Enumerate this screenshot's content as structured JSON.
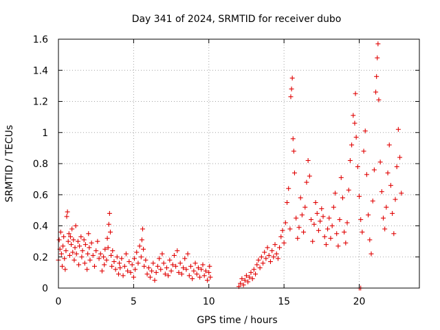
{
  "chart_data": {
    "type": "scatter",
    "title": "Day 341 of 2024, SRMTID for receiver dubo",
    "xlabel": "GPS time / hours",
    "ylabel": "SRMTID / TECUs",
    "xlim": [
      0,
      24
    ],
    "ylim": [
      0,
      1.6
    ],
    "xticks": [
      0,
      5,
      10,
      15,
      20
    ],
    "xtick_labels": [
      "0",
      "5",
      "10",
      "15",
      "20"
    ],
    "yticks": [
      0,
      0.2,
      0.4,
      0.6,
      0.8,
      1,
      1.2,
      1.4,
      1.6
    ],
    "ytick_labels": [
      "0",
      "0.2",
      "0.4",
      "0.6",
      "0.8",
      "1",
      "1.2",
      "1.4",
      "1.6"
    ],
    "grid": true,
    "marker": "+",
    "marker_color": "#e00000",
    "series": [
      {
        "name": "SRMTID",
        "points": [
          [
            0.0,
            0.18
          ],
          [
            0.05,
            0.31
          ],
          [
            0.1,
            0.25
          ],
          [
            0.15,
            0.36
          ],
          [
            0.2,
            0.22
          ],
          [
            0.25,
            0.14
          ],
          [
            0.3,
            0.27
          ],
          [
            0.35,
            0.33
          ],
          [
            0.4,
            0.19
          ],
          [
            0.45,
            0.12
          ],
          [
            0.5,
            0.24
          ],
          [
            0.55,
            0.46
          ],
          [
            0.6,
            0.49
          ],
          [
            0.65,
            0.3
          ],
          [
            0.7,
            0.35
          ],
          [
            0.75,
            0.21
          ],
          [
            0.8,
            0.33
          ],
          [
            0.85,
            0.28
          ],
          [
            0.9,
            0.38
          ],
          [
            0.95,
            0.23
          ],
          [
            1.0,
            0.31
          ],
          [
            1.05,
            0.18
          ],
          [
            1.1,
            0.26
          ],
          [
            1.15,
            0.4
          ],
          [
            1.2,
            0.22
          ],
          [
            1.3,
            0.3
          ],
          [
            1.35,
            0.15
          ],
          [
            1.4,
            0.27
          ],
          [
            1.5,
            0.33
          ],
          [
            1.55,
            0.2
          ],
          [
            1.6,
            0.24
          ],
          [
            1.7,
            0.31
          ],
          [
            1.75,
            0.16
          ],
          [
            1.8,
            0.28
          ],
          [
            1.9,
            0.12
          ],
          [
            1.95,
            0.22
          ],
          [
            2.0,
            0.35
          ],
          [
            2.05,
            0.26
          ],
          [
            2.1,
            0.18
          ],
          [
            2.2,
            0.29
          ],
          [
            2.3,
            0.21
          ],
          [
            2.4,
            0.14
          ],
          [
            2.5,
            0.24
          ],
          [
            2.6,
            0.3
          ],
          [
            2.7,
            0.19
          ],
          [
            2.8,
            0.22
          ],
          [
            2.9,
            0.11
          ],
          [
            3.0,
            0.2
          ],
          [
            3.05,
            0.15
          ],
          [
            3.1,
            0.25
          ],
          [
            3.2,
            0.18
          ],
          [
            3.25,
            0.32
          ],
          [
            3.3,
            0.26
          ],
          [
            3.35,
            0.41
          ],
          [
            3.4,
            0.48
          ],
          [
            3.45,
            0.36
          ],
          [
            3.5,
            0.21
          ],
          [
            3.55,
            0.14
          ],
          [
            3.6,
            0.24
          ],
          [
            3.7,
            0.17
          ],
          [
            3.8,
            0.12
          ],
          [
            3.9,
            0.2
          ],
          [
            4.0,
            0.09
          ],
          [
            4.05,
            0.16
          ],
          [
            4.1,
            0.13
          ],
          [
            4.2,
            0.19
          ],
          [
            4.3,
            0.08
          ],
          [
            4.4,
            0.14
          ],
          [
            4.5,
            0.22
          ],
          [
            4.6,
            0.11
          ],
          [
            4.7,
            0.17
          ],
          [
            4.8,
            0.1
          ],
          [
            4.9,
            0.15
          ],
          [
            5.0,
            0.07
          ],
          [
            5.05,
            0.19
          ],
          [
            5.1,
            0.12
          ],
          [
            5.2,
            0.23
          ],
          [
            5.3,
            0.16
          ],
          [
            5.4,
            0.27
          ],
          [
            5.5,
            0.2
          ],
          [
            5.55,
            0.31
          ],
          [
            5.6,
            0.38
          ],
          [
            5.65,
            0.25
          ],
          [
            5.7,
            0.14
          ],
          [
            5.8,
            0.18
          ],
          [
            5.9,
            0.09
          ],
          [
            6.0,
            0.13
          ],
          [
            6.1,
            0.07
          ],
          [
            6.2,
            0.11
          ],
          [
            6.3,
            0.16
          ],
          [
            6.4,
            0.05
          ],
          [
            6.5,
            0.1
          ],
          [
            6.6,
            0.14
          ],
          [
            6.7,
            0.19
          ],
          [
            6.8,
            0.12
          ],
          [
            6.9,
            0.22
          ],
          [
            7.0,
            0.16
          ],
          [
            7.1,
            0.09
          ],
          [
            7.2,
            0.13
          ],
          [
            7.3,
            0.08
          ],
          [
            7.4,
            0.18
          ],
          [
            7.5,
            0.11
          ],
          [
            7.6,
            0.15
          ],
          [
            7.7,
            0.21
          ],
          [
            7.8,
            0.14
          ],
          [
            7.9,
            0.24
          ],
          [
            8.0,
            0.1
          ],
          [
            8.1,
            0.16
          ],
          [
            8.2,
            0.09
          ],
          [
            8.3,
            0.13
          ],
          [
            8.4,
            0.19
          ],
          [
            8.5,
            0.12
          ],
          [
            8.6,
            0.22
          ],
          [
            8.7,
            0.08
          ],
          [
            8.8,
            0.14
          ],
          [
            8.9,
            0.06
          ],
          [
            9.0,
            0.11
          ],
          [
            9.1,
            0.16
          ],
          [
            9.2,
            0.09
          ],
          [
            9.3,
            0.13
          ],
          [
            9.4,
            0.07
          ],
          [
            9.5,
            0.12
          ],
          [
            9.6,
            0.15
          ],
          [
            9.7,
            0.08
          ],
          [
            9.8,
            0.11
          ],
          [
            9.9,
            0.05
          ],
          [
            10.0,
            0.1
          ],
          [
            10.05,
            0.14
          ],
          [
            10.1,
            0.07
          ],
          [
            12.0,
            0.01
          ],
          [
            12.1,
            0.03
          ],
          [
            12.2,
            0.06
          ],
          [
            12.3,
            0.02
          ],
          [
            12.4,
            0.05
          ],
          [
            12.5,
            0.08
          ],
          [
            12.6,
            0.04
          ],
          [
            12.7,
            0.07
          ],
          [
            12.8,
            0.1
          ],
          [
            12.9,
            0.06
          ],
          [
            13.0,
            0.12
          ],
          [
            13.1,
            0.09
          ],
          [
            13.2,
            0.15
          ],
          [
            13.3,
            0.18
          ],
          [
            13.4,
            0.13
          ],
          [
            13.5,
            0.2
          ],
          [
            13.6,
            0.16
          ],
          [
            13.7,
            0.23
          ],
          [
            13.8,
            0.19
          ],
          [
            13.9,
            0.26
          ],
          [
            14.0,
            0.21
          ],
          [
            14.1,
            0.17
          ],
          [
            14.2,
            0.24
          ],
          [
            14.3,
            0.2
          ],
          [
            14.4,
            0.28
          ],
          [
            14.5,
            0.22
          ],
          [
            14.6,
            0.19
          ],
          [
            14.7,
            0.26
          ],
          [
            14.8,
            0.33
          ],
          [
            14.9,
            0.37
          ],
          [
            15.0,
            0.29
          ],
          [
            15.1,
            0.42
          ],
          [
            15.2,
            0.55
          ],
          [
            15.3,
            0.64
          ],
          [
            15.4,
            0.38
          ],
          [
            15.45,
            1.23
          ],
          [
            15.5,
            1.28
          ],
          [
            15.55,
            1.35
          ],
          [
            15.6,
            0.96
          ],
          [
            15.65,
            0.88
          ],
          [
            15.7,
            0.74
          ],
          [
            15.8,
            0.45
          ],
          [
            15.9,
            0.32
          ],
          [
            16.0,
            0.39
          ],
          [
            16.1,
            0.58
          ],
          [
            16.2,
            0.47
          ],
          [
            16.3,
            0.36
          ],
          [
            16.4,
            0.52
          ],
          [
            16.5,
            0.68
          ],
          [
            16.6,
            0.82
          ],
          [
            16.7,
            0.72
          ],
          [
            16.8,
            0.44
          ],
          [
            16.9,
            0.3
          ],
          [
            17.0,
            0.41
          ],
          [
            17.1,
            0.55
          ],
          [
            17.2,
            0.48
          ],
          [
            17.3,
            0.37
          ],
          [
            17.4,
            0.43
          ],
          [
            17.5,
            0.51
          ],
          [
            17.6,
            0.46
          ],
          [
            17.7,
            0.33
          ],
          [
            17.8,
            0.28
          ],
          [
            17.9,
            0.38
          ],
          [
            18.0,
            0.45
          ],
          [
            18.1,
            0.32
          ],
          [
            18.2,
            0.4
          ],
          [
            18.3,
            0.52
          ],
          [
            18.4,
            0.61
          ],
          [
            18.5,
            0.35
          ],
          [
            18.6,
            0.27
          ],
          [
            18.7,
            0.44
          ],
          [
            18.8,
            0.71
          ],
          [
            18.9,
            0.58
          ],
          [
            19.0,
            0.36
          ],
          [
            19.1,
            0.29
          ],
          [
            19.2,
            0.42
          ],
          [
            19.3,
            0.63
          ],
          [
            19.4,
            0.82
          ],
          [
            19.5,
            0.92
          ],
          [
            19.6,
            1.11
          ],
          [
            19.7,
            1.06
          ],
          [
            19.75,
            1.25
          ],
          [
            19.8,
            0.97
          ],
          [
            19.9,
            0.78
          ],
          [
            20.0,
            0.59
          ],
          [
            20.1,
            0.44
          ],
          [
            20.2,
            0.36
          ],
          [
            20.3,
            0.88
          ],
          [
            20.4,
            1.01
          ],
          [
            20.5,
            0.73
          ],
          [
            20.6,
            0.47
          ],
          [
            20.7,
            0.31
          ],
          [
            20.8,
            0.22
          ],
          [
            20.9,
            0.56
          ],
          [
            21.0,
            0.76
          ],
          [
            21.1,
            1.26
          ],
          [
            21.15,
            1.36
          ],
          [
            21.2,
            1.48
          ],
          [
            21.25,
            1.57
          ],
          [
            21.3,
            1.21
          ],
          [
            21.4,
            0.81
          ],
          [
            21.5,
            0.62
          ],
          [
            21.6,
            0.45
          ],
          [
            21.7,
            0.38
          ],
          [
            21.8,
            0.52
          ],
          [
            21.9,
            0.74
          ],
          [
            22.0,
            0.92
          ],
          [
            22.1,
            0.66
          ],
          [
            22.2,
            0.48
          ],
          [
            22.3,
            0.35
          ],
          [
            22.4,
            0.57
          ],
          [
            22.5,
            0.78
          ],
          [
            22.6,
            1.02
          ],
          [
            22.7,
            0.84
          ],
          [
            22.8,
            0.61
          ],
          [
            20.0,
            0.0
          ],
          [
            20.1,
            0.0
          ]
        ]
      }
    ]
  }
}
